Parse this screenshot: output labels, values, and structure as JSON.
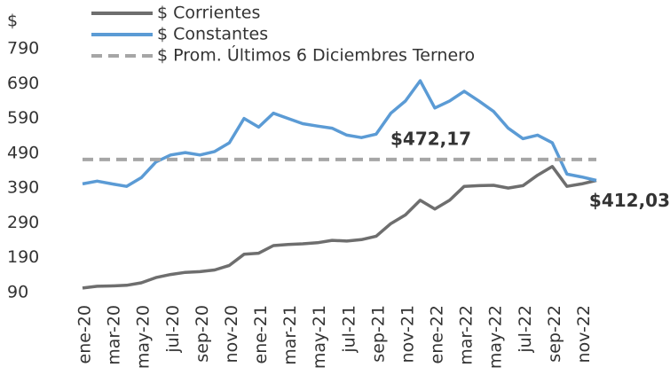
{
  "chart_data": {
    "type": "line",
    "y_label": "$",
    "categories": [
      "ene-20",
      null,
      "mar-20",
      null,
      "may-20",
      null,
      "jul-20",
      null,
      "sep-20",
      null,
      "nov-20",
      null,
      "ene-21",
      null,
      "mar-21",
      null,
      "may-21",
      null,
      "jul-21",
      null,
      "sep-21",
      null,
      "nov-21",
      null,
      "ene-22",
      null,
      "mar-22",
      null,
      "may-22",
      null,
      "jul-22",
      null,
      "sep-22",
      null,
      "nov-22",
      null
    ],
    "series": [
      {
        "name": "$ Corrientes",
        "color": "#6e6e6e",
        "dashed": false,
        "values": [
          103,
          108,
          109,
          111,
          118,
          133,
          142,
          148,
          150,
          155,
          168,
          200,
          203,
          225,
          228,
          230,
          233,
          240,
          238,
          242,
          252,
          288,
          313,
          355,
          330,
          355,
          395,
          397,
          398,
          390,
          397,
          427,
          452,
          395,
          402,
          412
        ]
      },
      {
        "name": "$ Constantes",
        "color": "#5b9bd5",
        "dashed": false,
        "values": [
          402,
          410,
          402,
          395,
          420,
          465,
          485,
          492,
          485,
          495,
          520,
          590,
          565,
          605,
          590,
          575,
          568,
          562,
          542,
          535,
          545,
          605,
          640,
          698,
          620,
          640,
          668,
          640,
          610,
          562,
          532,
          542,
          520,
          430,
          422,
          412.03
        ]
      },
      {
        "name": "$ Prom. Últimos 6 Diciembres Ternero",
        "color": "#a6a6a6",
        "dashed": true,
        "values": [
          472.17,
          472.17,
          472.17,
          472.17,
          472.17,
          472.17,
          472.17,
          472.17,
          472.17,
          472.17,
          472.17,
          472.17,
          472.17,
          472.17,
          472.17,
          472.17,
          472.17,
          472.17,
          472.17,
          472.17,
          472.17,
          472.17,
          472.17,
          472.17,
          472.17,
          472.17,
          472.17,
          472.17,
          472.17,
          472.17,
          472.17,
          472.17,
          472.17,
          472.17,
          472.17,
          472.17
        ]
      }
    ],
    "annotations": [
      {
        "text": "$472,17",
        "value": 472.17
      },
      {
        "text": "$412,03",
        "value": 412.03
      }
    ],
    "ylim": [
      90,
      790
    ],
    "yticks": [
      90,
      190,
      290,
      390,
      490,
      590,
      690,
      790
    ],
    "grid": false,
    "legend": "top"
  }
}
